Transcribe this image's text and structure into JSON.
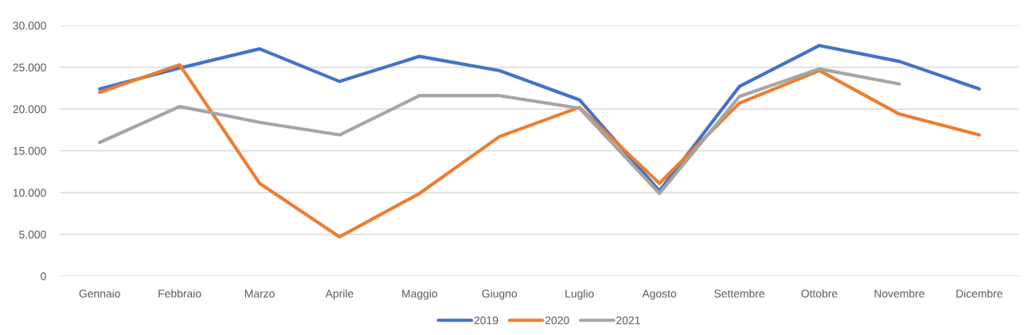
{
  "chart_data": {
    "type": "line",
    "categories": [
      "Gennaio",
      "Febbraio",
      "Marzo",
      "Aprile",
      "Maggio",
      "Giugno",
      "Luglio",
      "Agosto",
      "Settembre",
      "Ottobre",
      "Novembre",
      "Dicembre"
    ],
    "series": [
      {
        "name": "2019",
        "color": "#4472c4",
        "values": [
          22400,
          24900,
          27200,
          23300,
          26300,
          24600,
          21100,
          10200,
          22700,
          27600,
          25700,
          22400
        ]
      },
      {
        "name": "2020",
        "color": "#ed7d31",
        "values": [
          22000,
          25300,
          11100,
          4700,
          9900,
          16700,
          20200,
          11100,
          20700,
          24600,
          19400,
          16900
        ]
      },
      {
        "name": "2021",
        "color": "#a5a5a5",
        "values": [
          16000,
          20300,
          18400,
          16900,
          21600,
          21600,
          20100,
          9900,
          21500,
          24800,
          23000,
          null
        ]
      }
    ],
    "ylim": [
      0,
      30000
    ],
    "yticks": [
      0,
      {
        "value": 5000,
        "label": "5.000"
      },
      {
        "value": 10000,
        "label": "10.000"
      },
      {
        "value": 15000,
        "label": "15.000"
      },
      {
        "value": 20000,
        "label": "20.000"
      },
      {
        "value": 25000,
        "label": "25.000"
      },
      {
        "value": 30000,
        "label": "30.000"
      }
    ],
    "grid": "y",
    "legend": "bottom",
    "marker": "none",
    "line_style": "solid"
  }
}
